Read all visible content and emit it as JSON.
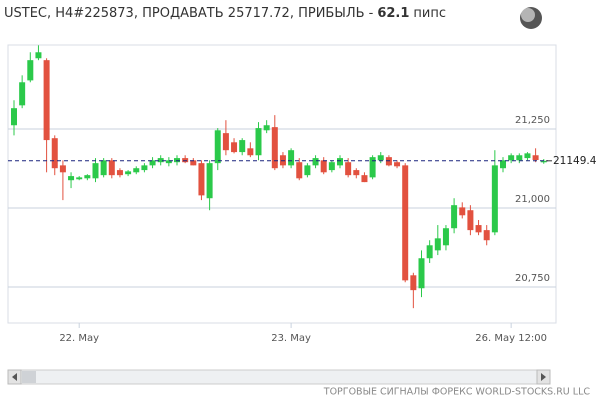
{
  "chart_data": {
    "type": "candlestick",
    "title": "USTEC, H4#225873, ПРОДАВАТЬ 25717.72, ПРИБЫЛЬ -",
    "profit": 62.1,
    "profit_unit": "пипс",
    "categories": [
      null,
      null,
      null,
      null,
      null,
      null,
      null,
      null,
      "22. May",
      null,
      null,
      null,
      null,
      null,
      null,
      null,
      null,
      null,
      null,
      null,
      null,
      null,
      null,
      null,
      null,
      null,
      null,
      null,
      null,
      null,
      null,
      null,
      null,
      null,
      "23. May",
      null,
      null,
      null,
      null,
      null,
      null,
      null,
      null,
      null,
      null,
      null,
      null,
      null,
      null,
      null,
      null,
      null,
      null,
      null,
      null,
      null,
      null,
      null,
      null,
      null,
      null,
      "26. May  12:00",
      null,
      null,
      null,
      null
    ],
    "open": [
      21262,
      21325,
      21404,
      21474,
      21468,
      21221,
      21135,
      21088,
      21091,
      21094,
      21094,
      21104,
      21151,
      21120,
      21107,
      21113,
      21120,
      21135,
      21145,
      21142,
      21145,
      21158,
      21151,
      21142,
      21031,
      21142,
      21237,
      21208,
      21177,
      21189,
      21167,
      21246,
      21256,
      21167,
      21135,
      21145,
      21104,
      21135,
      21151,
      21120,
      21135,
      21145,
      21120,
      21104,
      21097,
      21151,
      21161,
      21145,
      21135,
      20787,
      20746,
      20841,
      20866,
      20882,
      20936,
      21002,
      20993,
      20946,
      20930,
      20923,
      21126,
      21151,
      21151,
      21158,
      21167,
      21145
    ],
    "high": [
      21341,
      21420,
      21493,
      21515,
      21474,
      21230,
      21151,
      21113,
      21101,
      21107,
      21158,
      21158,
      21158,
      21126,
      21120,
      21132,
      21142,
      21161,
      21167,
      21161,
      21167,
      21167,
      21158,
      21151,
      21151,
      21253,
      21278,
      21221,
      21221,
      21208,
      21272,
      21278,
      21294,
      21177,
      21189,
      21158,
      21142,
      21167,
      21161,
      21151,
      21167,
      21158,
      21126,
      21113,
      21167,
      21177,
      21167,
      21151,
      21142,
      20795,
      20866,
      20898,
      20946,
      20946,
      21031,
      21018,
      21009,
      20962,
      20946,
      21183,
      21161,
      21173,
      21173,
      21177,
      21189,
      21155
    ],
    "low": [
      21230,
      21316,
      21398,
      21468,
      21113,
      21104,
      21025,
      21063,
      21088,
      21088,
      21082,
      21097,
      21094,
      21097,
      21101,
      21107,
      21113,
      21126,
      21135,
      21132,
      21135,
      21142,
      21135,
      21025,
      20993,
      21120,
      21167,
      21173,
      21167,
      21161,
      21151,
      21237,
      21120,
      21126,
      21126,
      21088,
      21097,
      21126,
      21107,
      21113,
      21126,
      21097,
      21094,
      21082,
      21091,
      21142,
      21132,
      21126,
      20765,
      20683,
      20718,
      20826,
      20851,
      20866,
      20920,
      20967,
      20914,
      20914,
      20882,
      20914,
      21113,
      21142,
      21142,
      21151,
      21145,
      21140
    ],
    "close": [
      21316,
      21398,
      21468,
      21493,
      21215,
      21126,
      21113,
      21101,
      21097,
      21104,
      21142,
      21151,
      21104,
      21104,
      21116,
      21126,
      21135,
      21151,
      21158,
      21151,
      21158,
      21145,
      21135,
      21040,
      21142,
      21246,
      21183,
      21177,
      21215,
      21167,
      21253,
      21262,
      21126,
      21135,
      21183,
      21094,
      21135,
      21158,
      21113,
      21145,
      21158,
      21104,
      21104,
      21082,
      21161,
      21167,
      21135,
      21132,
      20771,
      20740,
      20841,
      20882,
      20904,
      20936,
      21009,
      20977,
      20930,
      20923,
      20898,
      21135,
      21151,
      21167,
      21167,
      21173,
      21152,
      21149.4
    ],
    "up_color": "#2bc94a",
    "down_color": "#e2513f",
    "ylim": [
      20636,
      21516
    ],
    "yticks": [
      {
        "value": 20750,
        "label": "20,750"
      },
      {
        "value": 21000,
        "label": "21,000"
      },
      {
        "value": 21250,
        "label": "21,250"
      }
    ],
    "grid": true,
    "last_price": 21149.4,
    "last_price_color": "#1a237e"
  },
  "footer": "ТОРГОВЫЕ СИГНАЛЫ ФОРЕКС WORLD-STOCKS.RU LLC"
}
